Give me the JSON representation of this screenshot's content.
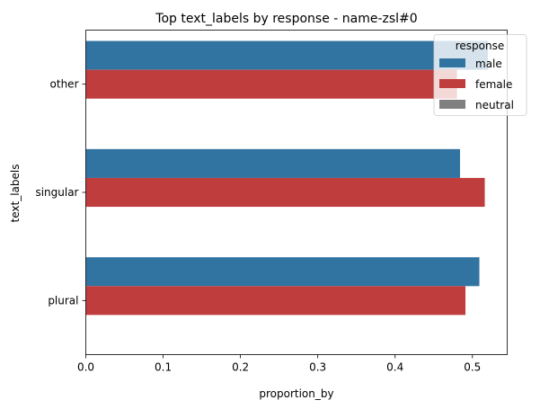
{
  "chart_data": {
    "type": "bar",
    "orientation": "horizontal",
    "title": "Top  text_labels by response - name-zsl#0",
    "xlabel": "proportion_by",
    "ylabel": "text_labels",
    "categories": [
      "other",
      "singular",
      "plural"
    ],
    "series": [
      {
        "name": "male",
        "color": "#3274a1",
        "values": [
          0.52,
          0.484,
          0.509
        ]
      },
      {
        "name": "female",
        "color": "#c03d3e",
        "values": [
          0.48,
          0.516,
          0.491
        ]
      },
      {
        "name": "neutral",
        "color": "#808080",
        "values": [
          0,
          0,
          0
        ]
      }
    ],
    "xlim": [
      0,
      0.545
    ],
    "xticks": [
      "0.0",
      "0.1",
      "0.2",
      "0.3",
      "0.4",
      "0.5"
    ],
    "xtick_values": [
      0,
      0.1,
      0.2,
      0.3,
      0.4,
      0.5
    ],
    "grid": false,
    "legend": {
      "title": "response",
      "placement": "top-right"
    }
  }
}
